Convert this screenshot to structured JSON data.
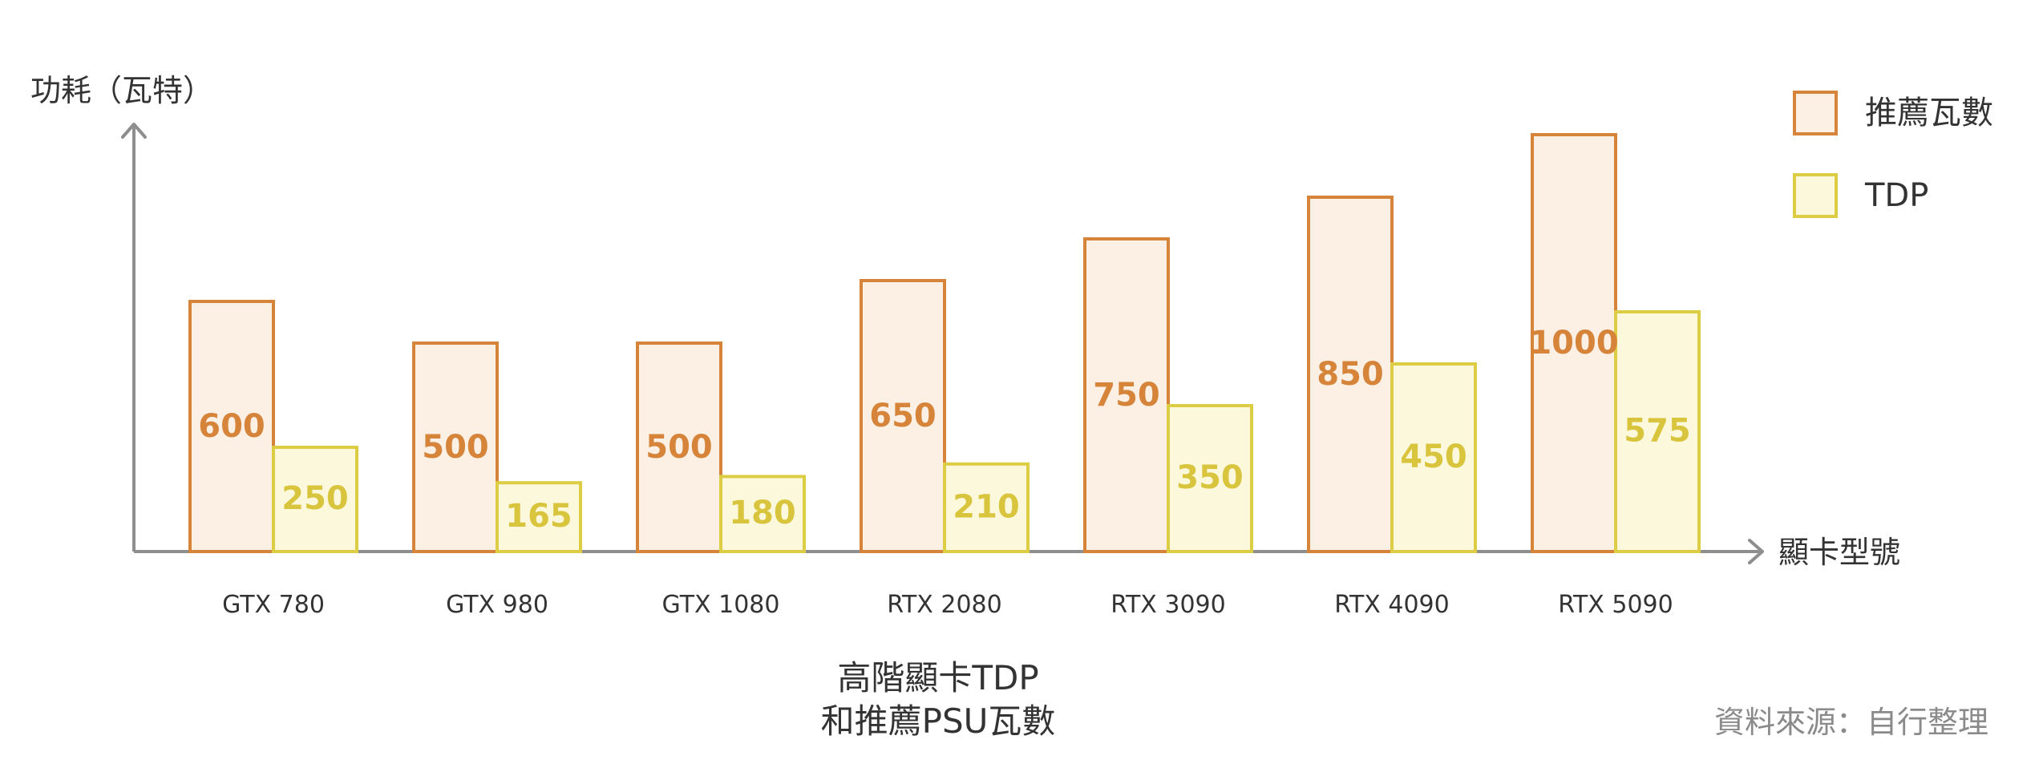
{
  "chart_data": {
    "type": "bar",
    "title_lines": [
      "高階顯卡TDP",
      "和推薦PSU瓦數"
    ],
    "ylabel": "功耗（瓦特）",
    "xlabel": "顯卡型號",
    "categories": [
      "GTX 780",
      "GTX 980",
      "GTX 1080",
      "RTX 2080",
      "RTX 3090",
      "RTX 4090",
      "RTX 5090"
    ],
    "series": [
      {
        "name": "推薦瓦數",
        "values": [
          600,
          500,
          500,
          650,
          750,
          850,
          1000
        ]
      },
      {
        "name": "TDP",
        "values": [
          250,
          165,
          180,
          210,
          350,
          450,
          575
        ]
      }
    ],
    "ylim": [
      0,
      1100
    ],
    "grid": false,
    "legend_position": "top-right",
    "source_note": "資料來源：自行整理",
    "colors": {
      "recommended_fill": "#fcefe3",
      "recommended_stroke": "#d5843a",
      "recommended_label": "#d5843a",
      "tdp_fill": "#fcf8db",
      "tdp_stroke": "#ddcd44",
      "tdp_label": "#d9c53d",
      "axis": "#8e8e8e",
      "text": "#333333",
      "muted_text": "#8a8a8a"
    }
  }
}
